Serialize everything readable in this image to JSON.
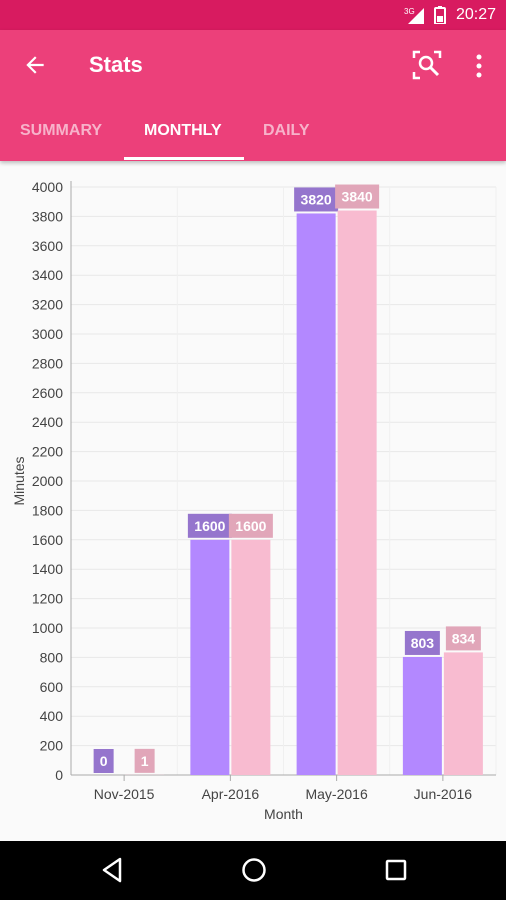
{
  "status_bar": {
    "time": "20:27",
    "network": "3G"
  },
  "app_bar": {
    "title": "Stats"
  },
  "tabs": [
    {
      "label": "SUMMARY",
      "active": false
    },
    {
      "label": "MONTHLY",
      "active": true
    },
    {
      "label": "DAILY",
      "active": false
    }
  ],
  "colors": {
    "status_bar": "#d81b60",
    "app_bar": "#ec407a",
    "series_a": "#b388ff",
    "series_b": "#f8bbd0"
  },
  "icons": {
    "back": "arrow-back-icon",
    "search": "search-icon",
    "more": "more-vert-icon"
  },
  "chart_data": {
    "type": "bar",
    "categories": [
      "Nov-2015",
      "Apr-2016",
      "May-2016",
      "Jun-2016"
    ],
    "series": [
      {
        "values": [
          0,
          1600,
          3820,
          803
        ],
        "color": "#b388ff",
        "label_color": "#9575cd"
      },
      {
        "values": [
          1,
          1600,
          3840,
          834
        ],
        "color": "#f8bbd0",
        "label_color": "#e1a6b9"
      }
    ],
    "xlabel": "Month",
    "ylabel": "Minutes",
    "ylim": [
      0,
      4000
    ],
    "yticks": [
      0,
      200,
      400,
      600,
      800,
      1000,
      1200,
      1400,
      1600,
      1800,
      2000,
      2200,
      2400,
      2600,
      2800,
      3000,
      3200,
      3400,
      3600,
      3800,
      4000
    ],
    "grid": true
  }
}
